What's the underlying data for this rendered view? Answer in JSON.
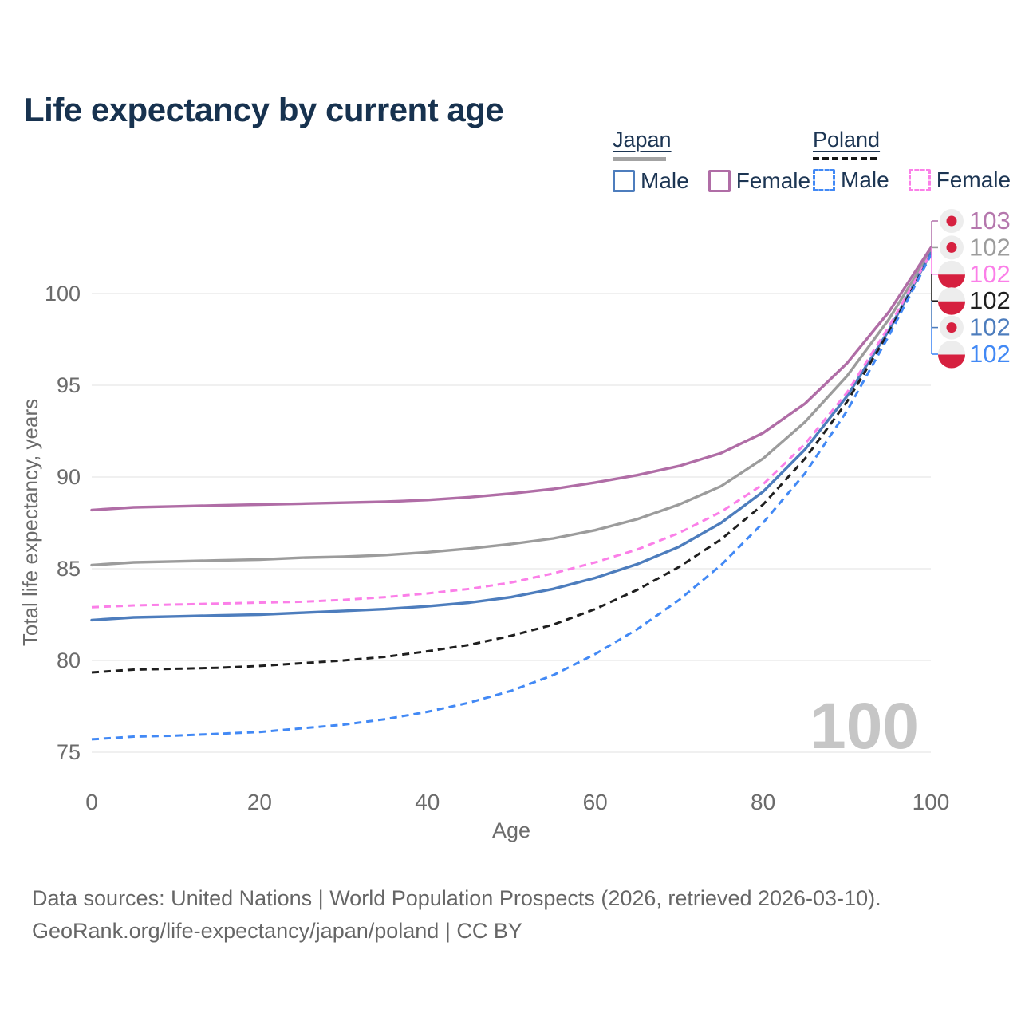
{
  "title": "Life expectancy by current age",
  "legend": {
    "japan": {
      "label": "Japan",
      "male": "Male",
      "female": "Female"
    },
    "poland": {
      "label": "Poland",
      "male": "Male",
      "female": "Female"
    }
  },
  "colors": {
    "japan_female": "#b06da6",
    "japan_total": "#9c9c9c",
    "japan_male": "#4d7dbd",
    "poland_female": "#fb7fe8",
    "poland_total": "#1f1f1f",
    "poland_male": "#4289f5",
    "flag_red": "#d6203f",
    "flag_bg": "#ededed",
    "grid": "#ececec",
    "tick_text": "#6b6b6b",
    "watermark": "#c6c6c6",
    "title_text": "#17324f"
  },
  "chart_data": {
    "type": "line",
    "title": "Life expectancy by current age",
    "xlabel": "Age",
    "ylabel": "Total life expectancy, years",
    "x_ticks": [
      0,
      20,
      40,
      60,
      80,
      100
    ],
    "y_ticks": [
      75,
      80,
      85,
      90,
      95,
      100
    ],
    "xlim": [
      0,
      100
    ],
    "ylim": [
      73.5,
      104
    ],
    "grid": "horizontal-only",
    "legend_position": "top-right",
    "watermark": "100",
    "x": [
      0,
      5,
      10,
      15,
      20,
      25,
      30,
      35,
      40,
      45,
      50,
      55,
      60,
      65,
      70,
      75,
      80,
      85,
      90,
      95,
      100
    ],
    "series": [
      {
        "id": "japan-total",
        "name": "Japan (both sexes)",
        "country": "Japan",
        "sex": "Both",
        "style": "solid",
        "color": "#9c9c9c",
        "values": [
          85.2,
          85.35,
          85.4,
          85.45,
          85.5,
          85.6,
          85.65,
          85.75,
          85.9,
          86.1,
          86.35,
          86.65,
          87.1,
          87.7,
          88.5,
          89.5,
          91.0,
          93.0,
          95.5,
          98.6,
          102.3
        ]
      },
      {
        "id": "japan-female",
        "name": "Japan Female",
        "country": "Japan",
        "sex": "Female",
        "style": "solid",
        "color": "#b06da6",
        "values": [
          88.2,
          88.35,
          88.4,
          88.45,
          88.5,
          88.55,
          88.6,
          88.65,
          88.75,
          88.9,
          89.1,
          89.35,
          89.7,
          90.1,
          90.6,
          91.3,
          92.4,
          94.0,
          96.2,
          99.0,
          102.5
        ]
      },
      {
        "id": "japan-male",
        "name": "Japan Male",
        "country": "Japan",
        "sex": "Male",
        "style": "solid",
        "color": "#4d7dbd",
        "values": [
          82.2,
          82.35,
          82.4,
          82.45,
          82.5,
          82.6,
          82.7,
          82.8,
          82.95,
          83.15,
          83.45,
          83.9,
          84.5,
          85.25,
          86.2,
          87.5,
          89.2,
          91.5,
          94.4,
          98.0,
          102.2
        ]
      },
      {
        "id": "poland-female",
        "name": "Poland Female",
        "country": "Poland",
        "sex": "Female",
        "style": "dashed",
        "color": "#fb7fe8",
        "values": [
          82.9,
          83.0,
          83.05,
          83.1,
          83.15,
          83.2,
          83.3,
          83.45,
          83.65,
          83.9,
          84.25,
          84.75,
          85.35,
          86.05,
          86.95,
          88.1,
          89.6,
          91.8,
          94.6,
          98.2,
          102.2
        ]
      },
      {
        "id": "poland-total",
        "name": "Poland (both sexes)",
        "country": "Poland",
        "sex": "Both",
        "style": "dashed",
        "color": "#1f1f1f",
        "values": [
          79.35,
          79.5,
          79.55,
          79.6,
          79.7,
          79.85,
          80.0,
          80.2,
          80.5,
          80.85,
          81.35,
          81.95,
          82.8,
          83.85,
          85.1,
          86.6,
          88.5,
          91.0,
          94.1,
          97.9,
          102.1
        ]
      },
      {
        "id": "poland-male",
        "name": "Poland Male",
        "country": "Poland",
        "sex": "Male",
        "style": "dashed",
        "color": "#4289f5",
        "values": [
          75.7,
          75.85,
          75.9,
          76.0,
          76.1,
          76.3,
          76.5,
          76.8,
          77.2,
          77.7,
          78.35,
          79.2,
          80.35,
          81.7,
          83.3,
          85.2,
          87.5,
          90.2,
          93.6,
          97.7,
          102.1
        ]
      }
    ],
    "end_labels": [
      {
        "flag": "japan",
        "value": "103",
        "color": "#b577ad"
      },
      {
        "flag": "japan",
        "value": "102",
        "color": "#9c9c9c"
      },
      {
        "flag": "poland",
        "value": "102",
        "color": "#fb7fe8"
      },
      {
        "flag": "poland",
        "value": "102",
        "color": "#1f1f1f"
      },
      {
        "flag": "japan",
        "value": "102",
        "color": "#4d7dbd"
      },
      {
        "flag": "poland",
        "value": "102",
        "color": "#4289f5"
      }
    ]
  },
  "footer": {
    "line1": "Data sources: United Nations | World Population Prospects (2026, retrieved 2026-03-10).",
    "line2": "GeoRank.org/life-expectancy/japan/poland | CC BY"
  }
}
